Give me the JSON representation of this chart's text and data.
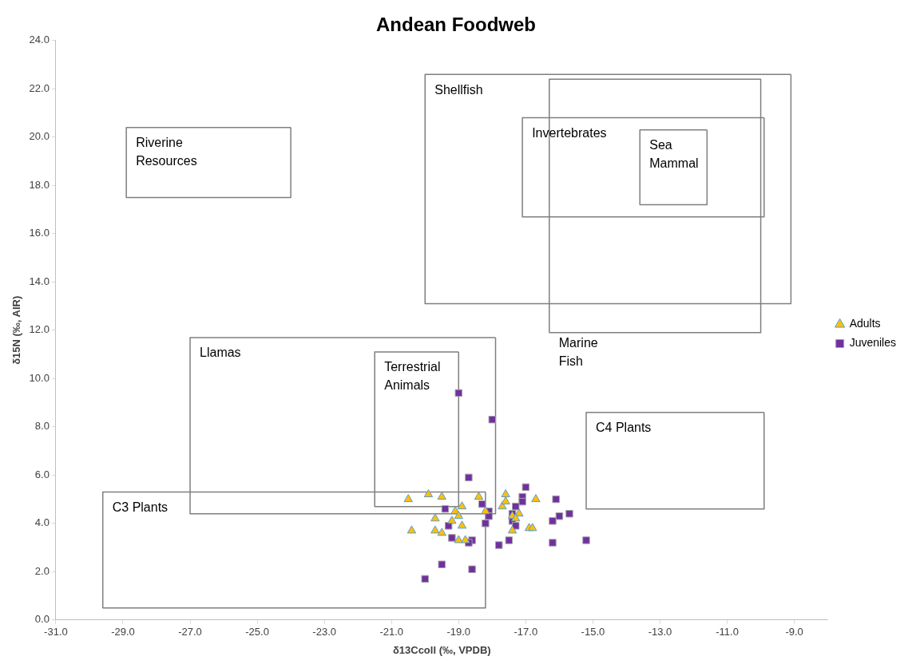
{
  "chart_data": {
    "type": "scatter",
    "title": "Andean Foodweb",
    "xlabel": "δ13Ccoll (‰, VPDB)",
    "ylabel": "δ15N (‰, AIR)",
    "xlim": [
      -31,
      -8
    ],
    "xticks": [
      {
        "value": -31,
        "label": "-31.0"
      },
      {
        "value": -29,
        "label": "-29.0"
      },
      {
        "value": -27,
        "label": "-27.0"
      },
      {
        "value": -25,
        "label": "-25.0"
      },
      {
        "value": -23,
        "label": "-23.0"
      },
      {
        "value": -21,
        "label": "-21.0"
      },
      {
        "value": -19,
        "label": "-19.0"
      },
      {
        "value": -17,
        "label": "-17.0"
      },
      {
        "value": -15,
        "label": "-15.0"
      },
      {
        "value": -13,
        "label": "-13.0"
      },
      {
        "value": -11,
        "label": "-11.0"
      },
      {
        "value": -9,
        "label": "-9.0"
      }
    ],
    "ylim": [
      0,
      24
    ],
    "yticks": [
      {
        "value": 0,
        "label": "0.0"
      },
      {
        "value": 2,
        "label": "2.0"
      },
      {
        "value": 4,
        "label": "4.0"
      },
      {
        "value": 6,
        "label": "6.0"
      },
      {
        "value": 8,
        "label": "8.0"
      },
      {
        "value": 10,
        "label": "10.0"
      },
      {
        "value": 12,
        "label": "12.0"
      },
      {
        "value": 14,
        "label": "14.0"
      },
      {
        "value": 16,
        "label": "16.0"
      },
      {
        "value": 18,
        "label": "18.0"
      },
      {
        "value": 20,
        "label": "20.0"
      },
      {
        "value": 22,
        "label": "22.0"
      },
      {
        "value": 24,
        "label": "24.0"
      }
    ],
    "grid": false,
    "legend": "right",
    "series": [
      {
        "name": "Riverine\nResources",
        "type": "line",
        "color": "#7f7f7f",
        "marker": "none",
        "x": [
          -28.9,
          -28.9,
          -24.0,
          -24.0
        ],
        "values": [
          20.4,
          17.5,
          17.5,
          20.4
        ]
      },
      {
        "type": "line",
        "color": "#7f7f7f",
        "marker": "none",
        "x": [
          -28.9,
          -24.0
        ],
        "values": [
          20.4,
          20.4
        ]
      },
      {
        "name": "Shellfish",
        "type": "line",
        "color": "#7f7f7f",
        "marker": "none",
        "x": [
          -20.0,
          -20.0,
          -9.1,
          -9.1
        ],
        "values": [
          22.6,
          13.1,
          13.1,
          22.6
        ]
      },
      {
        "type": "line",
        "color": "#7f7f7f",
        "marker": "none",
        "x": [
          -20.0,
          -9.1
        ],
        "values": [
          22.6,
          22.6
        ]
      },
      {
        "name": "Marine\nFish",
        "type": "line",
        "color": "#7f7f7f",
        "marker": "none",
        "x": [
          -16.3,
          -16.3,
          -10.0,
          -10.0
        ],
        "values": [
          11.9,
          22.4,
          22.4,
          11.9
        ]
      },
      {
        "type": "line",
        "color": "#7f7f7f",
        "marker": "none",
        "x": [
          -16.3,
          -10.0
        ],
        "values": [
          11.9,
          11.9
        ]
      },
      {
        "name": "Invertebrates",
        "type": "line",
        "color": "#7f7f7f",
        "marker": "none",
        "x": [
          -17.1,
          -17.1,
          -9.9,
          -9.9
        ],
        "values": [
          20.8,
          16.7,
          16.7,
          20.8
        ]
      },
      {
        "type": "line",
        "color": "#7f7f7f",
        "marker": "none",
        "x": [
          -17.1,
          -9.9
        ],
        "values": [
          20.8,
          20.8
        ]
      },
      {
        "name": "Sea\nMammal",
        "type": "line",
        "color": "#7f7f7f",
        "marker": "none",
        "x": [
          -13.6,
          -13.6,
          -11.6,
          -11.6
        ],
        "values": [
          20.3,
          17.2,
          17.2,
          20.3
        ]
      },
      {
        "type": "line",
        "color": "#7f7f7f",
        "marker": "none",
        "x": [
          -13.6,
          -11.6
        ],
        "values": [
          20.3,
          20.3
        ]
      },
      {
        "name": "Llamas",
        "type": "line",
        "color": "#7f7f7f",
        "marker": "none",
        "x": [
          -27.0,
          -27.0,
          -17.9,
          -17.9
        ],
        "values": [
          11.7,
          4.4,
          4.4,
          11.7
        ]
      },
      {
        "type": "line",
        "color": "#7f7f7f",
        "marker": "none",
        "x": [
          -27.0,
          -17.9
        ],
        "values": [
          11.7,
          11.7
        ]
      },
      {
        "name": "Terrestrial\nAnimals",
        "type": "line",
        "color": "#7f7f7f",
        "marker": "none",
        "x": [
          -21.5,
          -21.5,
          -19.0,
          -19.0
        ],
        "values": [
          11.1,
          4.7,
          4.7,
          11.1
        ]
      },
      {
        "type": "line",
        "color": "#7f7f7f",
        "marker": "none",
        "x": [
          -21.5,
          -19.0
        ],
        "values": [
          11.1,
          11.1
        ]
      },
      {
        "name": "C3 Plants",
        "type": "line",
        "color": "#7f7f7f",
        "marker": "none",
        "x": [
          -29.6,
          -29.6,
          -18.2,
          -18.2
        ],
        "values": [
          5.3,
          0.5,
          0.5,
          5.3
        ]
      },
      {
        "type": "line",
        "color": "#7f7f7f",
        "marker": "none",
        "x": [
          -29.6,
          -18.2
        ],
        "values": [
          5.3,
          5.3
        ]
      },
      {
        "name": "C4 Plants",
        "type": "line",
        "color": "#7f7f7f",
        "marker": "none",
        "x": [
          -15.2,
          -15.2,
          -9.9,
          -9.9
        ],
        "values": [
          8.6,
          4.6,
          4.6,
          8.6
        ]
      },
      {
        "type": "line",
        "color": "#7f7f7f",
        "marker": "none",
        "x": [
          -15.2,
          -9.9
        ],
        "values": [
          8.6,
          8.6
        ]
      },
      {
        "name": "Juveniles",
        "color": "#7030a0",
        "marker": "square",
        "x": [
          -19.0,
          -18.0,
          -18.7,
          -17.0,
          -17.1,
          -17.1,
          -16.1,
          -19.4,
          -18.3,
          -18.1,
          -18.1,
          -17.3,
          -17.4,
          -17.4,
          -17.3,
          -18.2,
          -19.3,
          -16.0,
          -15.7,
          -16.2,
          -19.2,
          -18.6,
          -18.7,
          -17.5,
          -17.8,
          -16.2,
          -15.2,
          -19.5,
          -18.6,
          -20.0
        ],
        "values": [
          9.4,
          8.3,
          5.9,
          5.5,
          5.1,
          4.9,
          5.0,
          4.6,
          4.8,
          4.5,
          4.3,
          4.7,
          4.4,
          4.1,
          3.9,
          4.0,
          3.9,
          4.3,
          4.4,
          4.1,
          3.4,
          3.3,
          3.2,
          3.3,
          3.1,
          3.2,
          3.3,
          2.3,
          2.1,
          1.7
        ]
      },
      {
        "name": "Adults",
        "color": "#ffc000",
        "marker": "triangle",
        "x": [
          -20.5,
          -19.9,
          -19.5,
          -18.4,
          -17.6,
          -16.7,
          -18.9,
          -19.1,
          -18.2,
          -17.7,
          -17.6,
          -17.4,
          -17.2,
          -17.3,
          -19.0,
          -19.7,
          -19.2,
          -18.9,
          -16.9,
          -16.8,
          -17.4,
          -20.4,
          -19.7,
          -19.5,
          -19.0,
          -18.8
        ],
        "values": [
          5.0,
          5.2,
          5.1,
          5.1,
          5.2,
          5.0,
          4.7,
          4.5,
          4.5,
          4.7,
          4.9,
          4.3,
          4.4,
          4.2,
          4.3,
          4.2,
          4.1,
          3.9,
          3.8,
          3.8,
          3.7,
          3.7,
          3.7,
          3.6,
          3.3,
          3.3
        ]
      }
    ]
  }
}
